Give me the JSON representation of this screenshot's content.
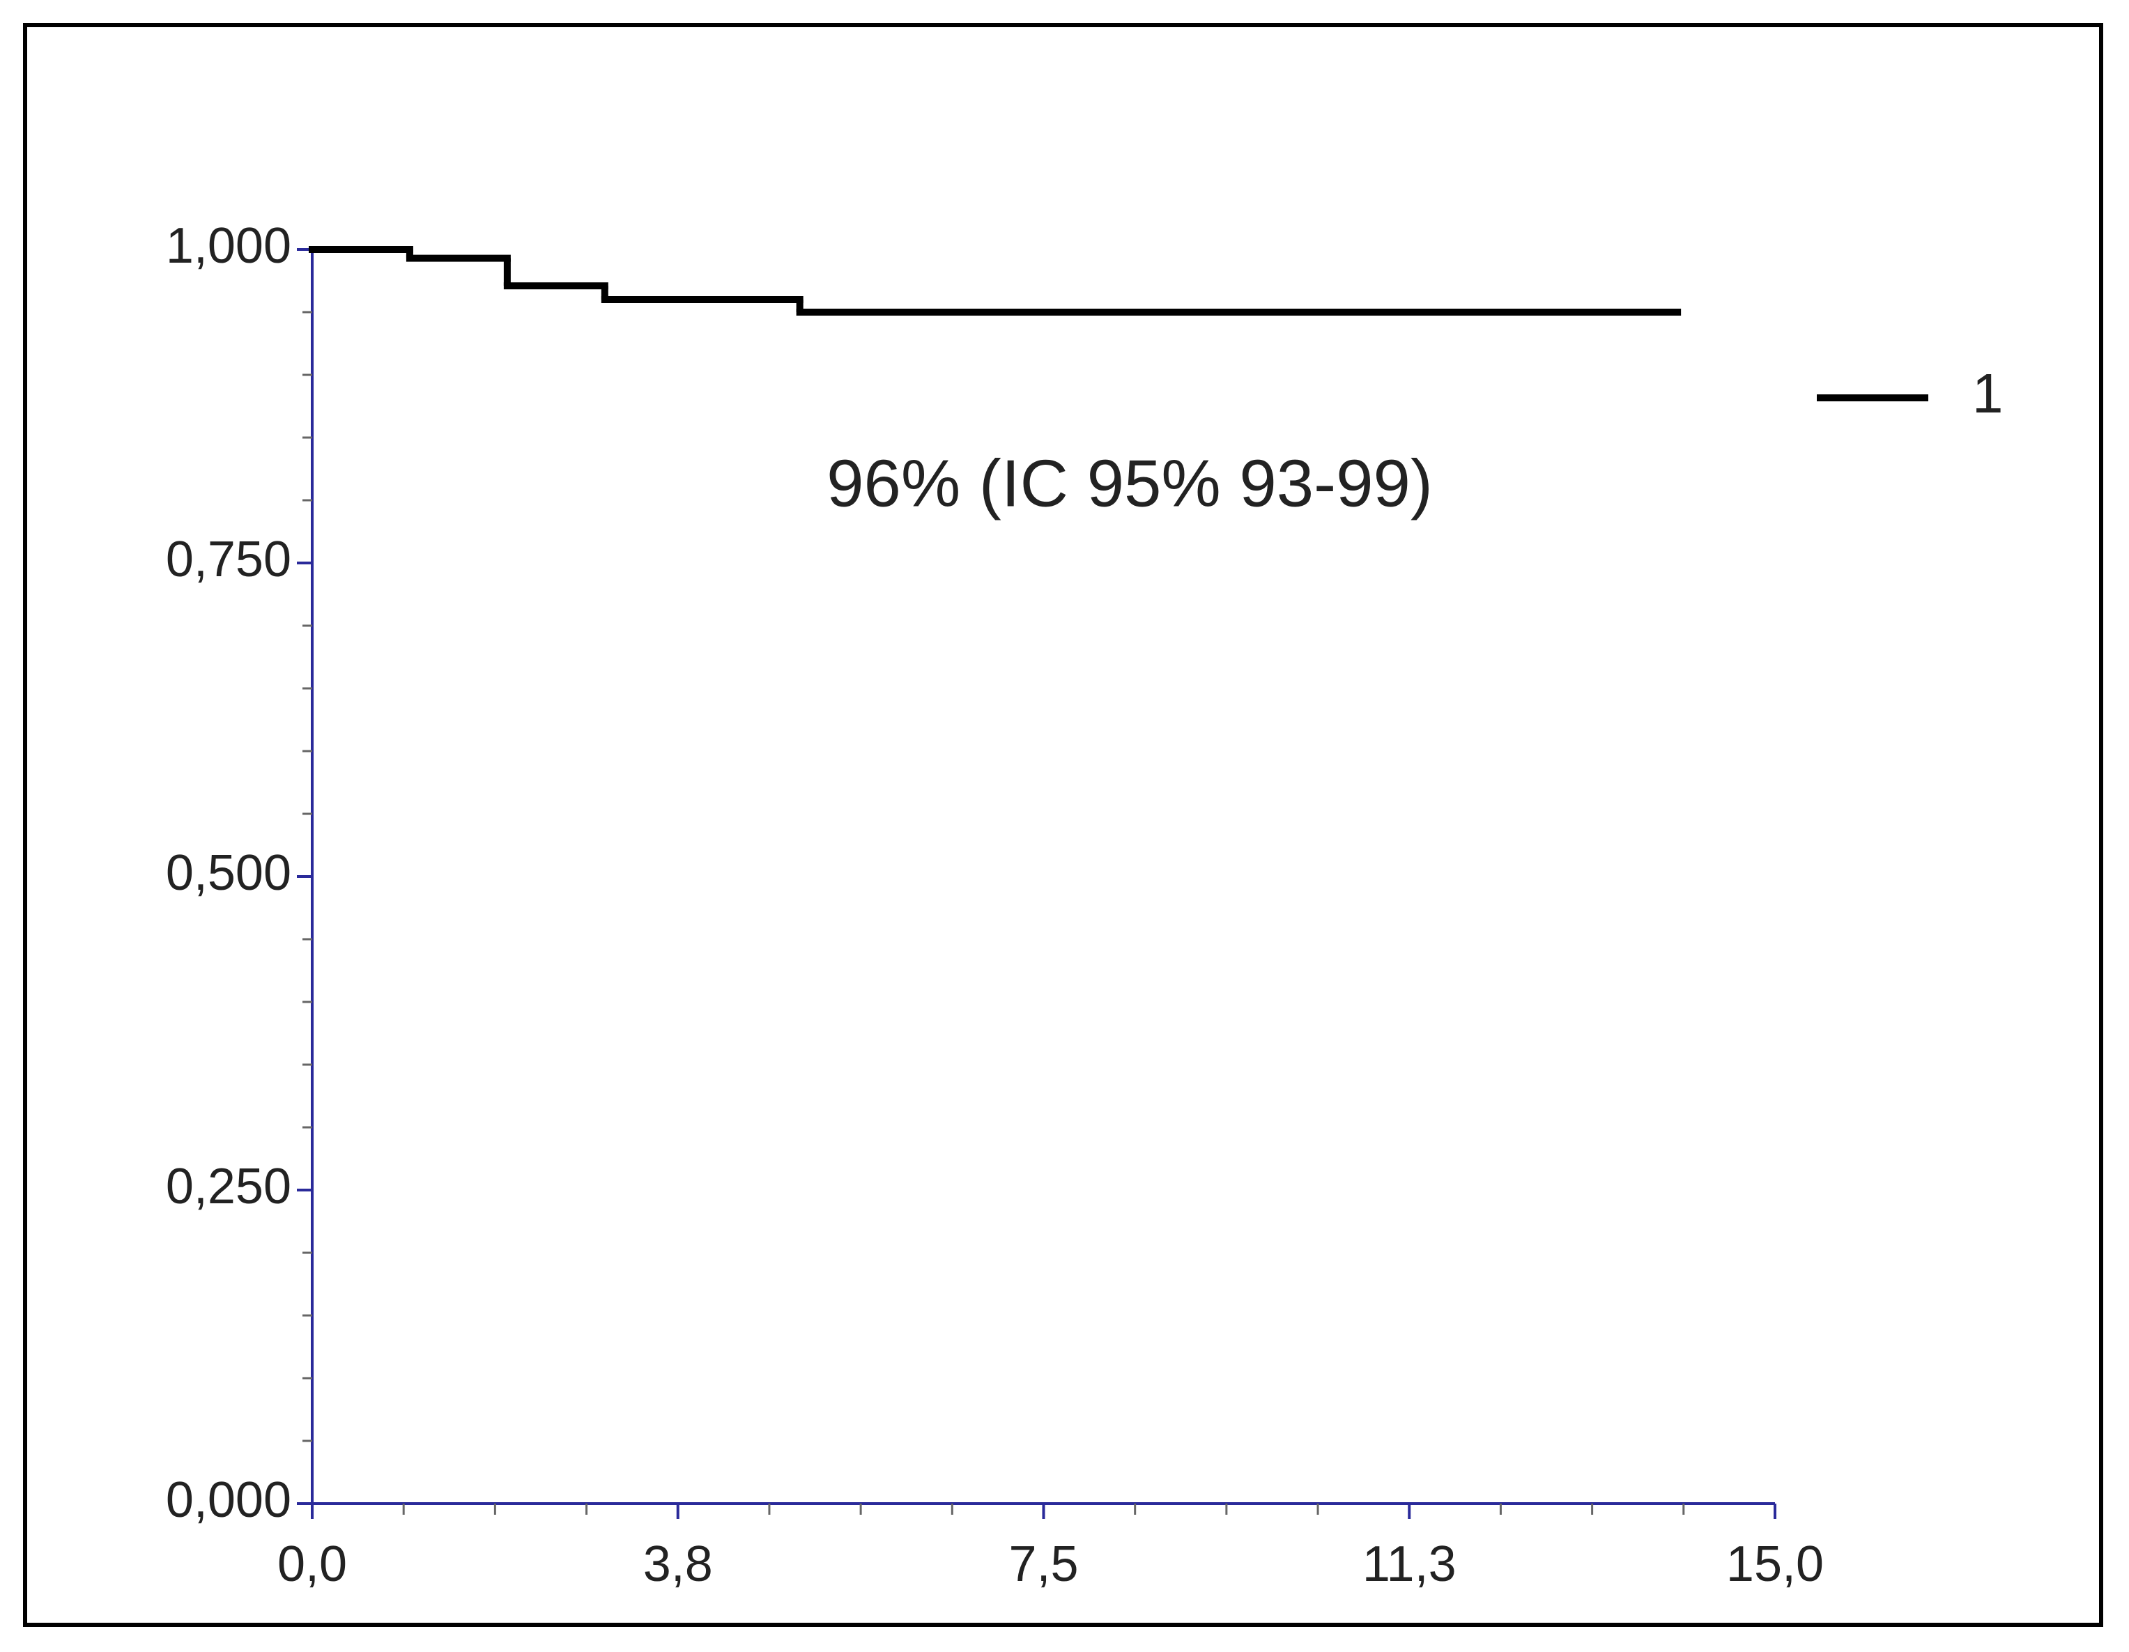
{
  "chart_data": {
    "type": "step",
    "annotation": "96% (IC 95% 93-99)",
    "x": [
      0,
      1,
      2,
      3,
      5,
      14
    ],
    "series": [
      {
        "name": "1",
        "color": "#000000",
        "values": [
          1.0,
          0.993,
          0.971,
          0.96,
          0.95,
          0.95
        ]
      }
    ],
    "xlim": [
      0,
      15
    ],
    "ylim": [
      0,
      1
    ],
    "xticks": [
      {
        "value": 0,
        "label": "0,0"
      },
      {
        "value": 3.75,
        "label": "3,8"
      },
      {
        "value": 7.5,
        "label": "7,5"
      },
      {
        "value": 11.25,
        "label": "11,3"
      },
      {
        "value": 15,
        "label": "15,0"
      }
    ],
    "yticks": [
      {
        "value": 0,
        "label": "0,000"
      },
      {
        "value": 0.25,
        "label": "0,250"
      },
      {
        "value": 0.5,
        "label": "0,500"
      },
      {
        "value": 0.75,
        "label": "0,750"
      },
      {
        "value": 1,
        "label": "1,000"
      }
    ],
    "legend": "right"
  }
}
